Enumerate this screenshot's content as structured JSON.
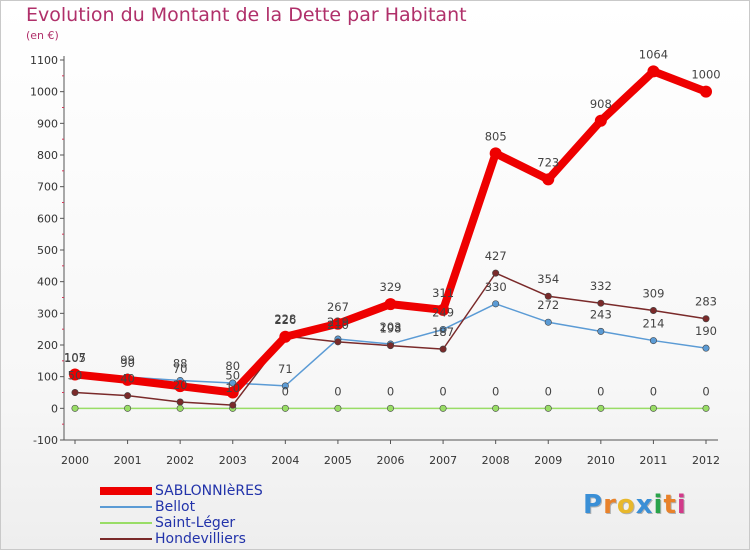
{
  "title": "Evolution du Montant de la Dette par Habitant",
  "subtitle": "(en €)",
  "logo": {
    "letters": [
      "P",
      "r",
      "o",
      "x",
      "i",
      "t",
      "i"
    ],
    "colors": [
      "#3a8fd6",
      "#e8822b",
      "#e8b82b",
      "#3a8fd6",
      "#2aa34a",
      "#e8822b",
      "#d23a8a"
    ]
  },
  "chart_data": {
    "type": "line",
    "title": "Evolution du Montant de la Dette par Habitant",
    "subtitle": "(en €)",
    "x": [
      "2000",
      "2001",
      "2002",
      "2003",
      "2004",
      "2005",
      "2006",
      "2007",
      "2008",
      "2009",
      "2010",
      "2011",
      "2012"
    ],
    "yticks": [
      "-100",
      "0",
      "100",
      "200",
      "300",
      "400",
      "500",
      "600",
      "700",
      "800",
      "900",
      "1000",
      "1100"
    ],
    "ylim": [
      -100,
      1100
    ],
    "grid": false,
    "legend_position": "bottom-left",
    "series": [
      {
        "name": "SABLONNIèRES",
        "color": "#ee0000",
        "values": [
          107,
          90,
          70,
          50,
          226,
          267,
          329,
          311,
          805,
          723,
          908,
          1064,
          1000
        ],
        "labels": [
          "107",
          "90",
          "70",
          "50",
          "226",
          "267",
          "329",
          "311",
          "805",
          "723",
          "908",
          "1064",
          "1000"
        ]
      },
      {
        "name": "Bellot",
        "color": "#5b9bd5",
        "values": [
          105,
          99,
          88,
          80,
          71,
          219,
          203,
          249,
          330,
          272,
          243,
          214,
          190
        ],
        "labels": [
          "105",
          "99",
          "88",
          "80",
          "71",
          "219",
          "203",
          "249",
          "330",
          "272",
          "243",
          "214",
          "190"
        ]
      },
      {
        "name": "Saint-Léger",
        "color": "#99dd66",
        "values": [
          0,
          0,
          0,
          0,
          0,
          0,
          0,
          0,
          0,
          0,
          0,
          0,
          0
        ],
        "labels": [
          "",
          "",
          "",
          "",
          "0",
          "0",
          "0",
          "0",
          "0",
          "0",
          "0",
          "0",
          "0"
        ]
      },
      {
        "name": "Hondevilliers",
        "color": "#7a2a2a",
        "values": [
          50,
          40,
          20,
          10,
          228,
          210,
          198,
          187,
          427,
          354,
          332,
          309,
          283
        ],
        "labels": [
          "50",
          "40",
          "20",
          "10",
          "228",
          "210",
          "198",
          "187",
          "427",
          "354",
          "332",
          "309",
          "283"
        ]
      }
    ]
  }
}
